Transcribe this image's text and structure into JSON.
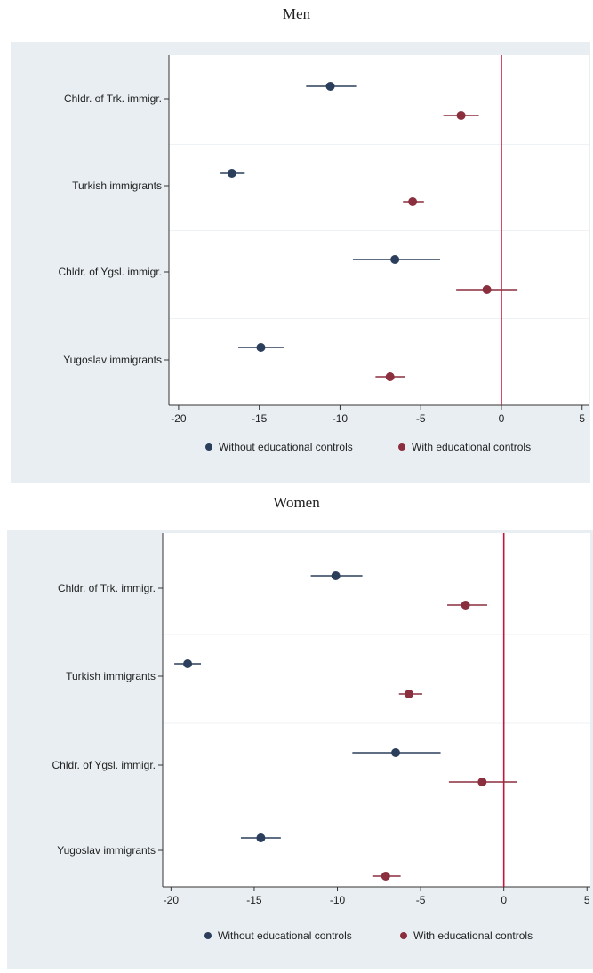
{
  "panels": [
    {
      "title": "Men",
      "chart_data": {
        "type": "scatter",
        "subtype": "coefficient-plot",
        "title": "Men",
        "xlim": [
          -20.6,
          5.4
        ],
        "x_ticks": [
          -20,
          -15,
          -10,
          -5,
          0,
          5
        ],
        "reference_line_x": 0,
        "categories": [
          "Chldr. of Trk. immigr.",
          "Turkish immigrants",
          "Chldr. of  Ygsl. immigr.",
          "Yugoslav immigrants"
        ],
        "series": [
          {
            "name": "Without educational controls",
            "color": "#2b3f5c",
            "points": [
              {
                "estimate": -10.6,
                "ci": [
                  -12.1,
                  -9.0
                ]
              },
              {
                "estimate": -16.7,
                "ci": [
                  -17.4,
                  -15.9
                ]
              },
              {
                "estimate": -6.6,
                "ci": [
                  -9.2,
                  -3.8
                ]
              },
              {
                "estimate": -14.9,
                "ci": [
                  -16.3,
                  -13.5
                ]
              }
            ]
          },
          {
            "name": "With educational controls",
            "color": "#8b2e3e",
            "points": [
              {
                "estimate": -2.5,
                "ci": [
                  -3.6,
                  -1.4
                ]
              },
              {
                "estimate": -5.5,
                "ci": [
                  -6.1,
                  -4.8
                ]
              },
              {
                "estimate": -0.9,
                "ci": [
                  -2.8,
                  1.0
                ]
              },
              {
                "estimate": -6.9,
                "ci": [
                  -7.8,
                  -6.0
                ]
              }
            ]
          }
        ],
        "legend": {
          "position": "bottom",
          "entries": [
            "Without educational controls",
            "With educational controls"
          ]
        },
        "grid": true
      }
    },
    {
      "title": "Women",
      "chart_data": {
        "type": "scatter",
        "subtype": "coefficient-plot",
        "title": "Women",
        "xlim": [
          -20.5,
          5.2
        ],
        "x_ticks": [
          -20,
          -15,
          -10,
          -5,
          0,
          5
        ],
        "reference_line_x": 0,
        "categories": [
          "Chldr. of Trk. immigr.",
          "Turkish immigrants",
          "Chldr. of Ygsl. immigr.",
          "Yugoslav immigrants"
        ],
        "series": [
          {
            "name": "Without educational controls",
            "color": "#2b3f5c",
            "points": [
              {
                "estimate": -10.1,
                "ci": [
                  -11.6,
                  -8.5
                ]
              },
              {
                "estimate": -19.0,
                "ci": [
                  -19.8,
                  -18.2
                ]
              },
              {
                "estimate": -6.5,
                "ci": [
                  -9.1,
                  -3.8
                ]
              },
              {
                "estimate": -14.6,
                "ci": [
                  -15.8,
                  -13.4
                ]
              }
            ]
          },
          {
            "name": "With educational controls",
            "color": "#8b2e3e",
            "points": [
              {
                "estimate": -2.3,
                "ci": [
                  -3.4,
                  -1.0
                ]
              },
              {
                "estimate": -5.7,
                "ci": [
                  -6.3,
                  -4.9
                ]
              },
              {
                "estimate": -1.3,
                "ci": [
                  -3.3,
                  0.8
                ]
              },
              {
                "estimate": -7.1,
                "ci": [
                  -7.9,
                  -6.2
                ]
              }
            ]
          }
        ],
        "legend": {
          "position": "bottom",
          "entries": [
            "Without educational controls",
            "With educational controls"
          ]
        },
        "grid": true
      }
    }
  ],
  "colors": {
    "background": "#e9eef2",
    "plot_area": "#ffffff",
    "axis": "#333333",
    "reference_line": "#c8143c"
  }
}
